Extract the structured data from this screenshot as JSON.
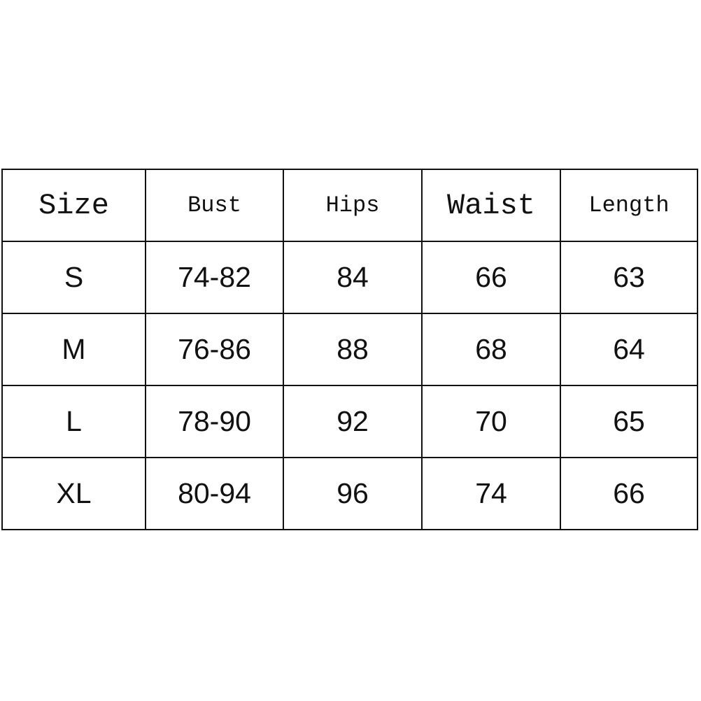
{
  "table": {
    "headers": [
      "Size",
      "Bust",
      "Hips",
      "Waist",
      "Length"
    ],
    "rows": [
      [
        "S",
        "74-82",
        "84",
        "66",
        "63"
      ],
      [
        "M",
        "76-86",
        "88",
        "68",
        "64"
      ],
      [
        "L",
        "78-90",
        "92",
        "70",
        "65"
      ],
      [
        "XL",
        "80-94",
        "96",
        "74",
        "66"
      ]
    ]
  }
}
